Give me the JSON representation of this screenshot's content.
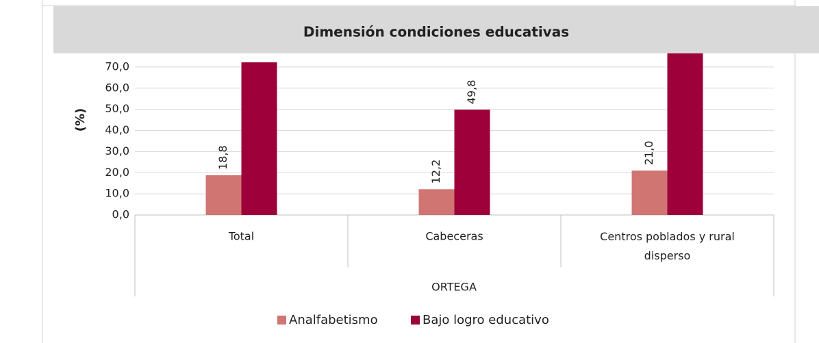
{
  "chart_data": {
    "type": "bar",
    "title": "Dimensión condiciones educativas",
    "y_label": "(%)",
    "x_group_label": "ORTEGA",
    "categories": [
      "Total",
      "Cabeceras",
      "Centros poblados y rural disperso"
    ],
    "series": [
      {
        "name": "Analfabetismo",
        "color": "#d17572",
        "values": [
          18.8,
          12.2,
          21.0
        ],
        "value_labels": [
          "18,8",
          "12,2",
          "21,0"
        ]
      },
      {
        "name": "Bajo logro educativo",
        "color": "#9e0039",
        "values": [
          72.2,
          49.8,
          85.0
        ],
        "value_labels": [
          null,
          "49,8",
          null
        ]
      }
    ],
    "ylim": [
      0,
      80
    ],
    "yticks": [
      {
        "value": 0,
        "label": "0,0"
      },
      {
        "value": 10,
        "label": "10,0"
      },
      {
        "value": 20,
        "label": "20,0"
      },
      {
        "value": 30,
        "label": "30,0"
      },
      {
        "value": 40,
        "label": "40,0"
      },
      {
        "value": 50,
        "label": "50,0"
      },
      {
        "value": 60,
        "label": "60,0"
      },
      {
        "value": 70,
        "label": "70,0"
      }
    ],
    "grid": true
  }
}
